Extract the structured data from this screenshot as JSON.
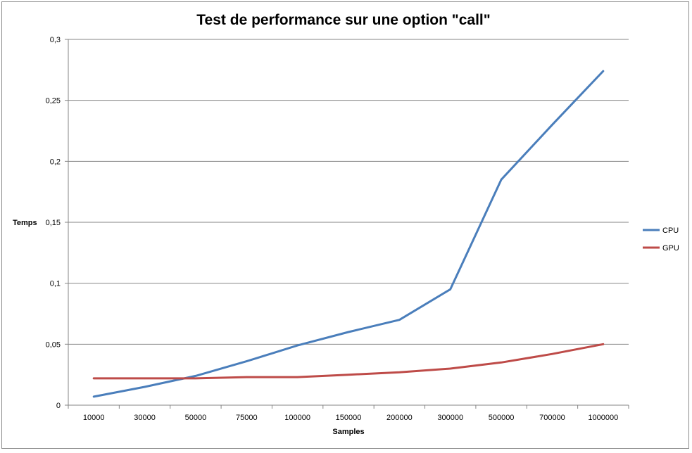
{
  "chart_data": {
    "type": "line",
    "title": "Test de performance sur une option \"call\"",
    "xlabel": "Samples",
    "ylabel": "Temps",
    "categories": [
      "10000",
      "30000",
      "50000",
      "75000",
      "100000",
      "150000",
      "200000",
      "300000",
      "500000",
      "700000",
      "1000000"
    ],
    "y_ticks": [
      "0",
      "0,05",
      "0,1",
      "0,15",
      "0,2",
      "0,25",
      "0,3"
    ],
    "ylim": [
      0,
      0.3
    ],
    "grid": true,
    "legend_position": "right",
    "series": [
      {
        "name": "CPU",
        "color": "#4a7ebb",
        "values": [
          0.007,
          0.015,
          0.024,
          0.036,
          0.049,
          0.06,
          0.07,
          0.095,
          0.185,
          0.23,
          0.274
        ]
      },
      {
        "name": "GPU",
        "color": "#be4b48",
        "values": [
          0.022,
          0.022,
          0.022,
          0.023,
          0.023,
          0.025,
          0.027,
          0.03,
          0.035,
          0.042,
          0.05
        ]
      }
    ]
  }
}
